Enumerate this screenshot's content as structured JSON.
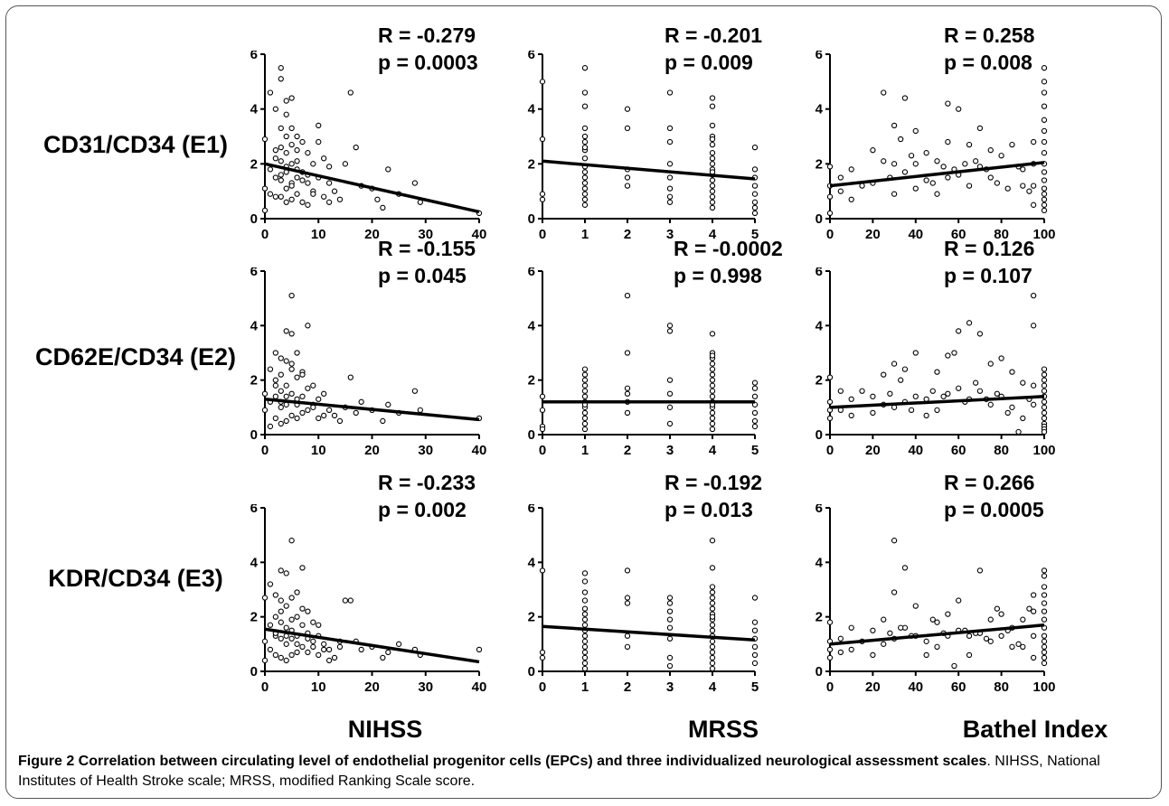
{
  "row_labels": [
    "CD31/CD34 (E1)",
    "CD62E/CD34 (E2)",
    "KDR/CD34 (E3)"
  ],
  "col_labels": [
    "NIHSS",
    "MRSS",
    "Bathel Index"
  ],
  "caption": {
    "title": "Figure 2 Correlation between circulating level of endothelial progenitor cells (EPCs) and three individualized neurological assessment scales",
    "text": ". NIHSS, National Institutes of Health Stroke scale; MRSS, modified Ranking Scale score."
  },
  "chart_data": [
    {
      "type": "scatter",
      "row": 0,
      "col": 0,
      "xlim": [
        0,
        40
      ],
      "ylim": [
        0,
        6
      ],
      "xticks": [
        0,
        10,
        20,
        30,
        40
      ],
      "yticks": [
        0,
        2,
        4,
        6
      ],
      "r_text": "R = -0.279",
      "p_text": "p = 0.0003",
      "fit": [
        [
          0,
          2.0
        ],
        [
          40,
          0.25
        ]
      ],
      "x": [
        0,
        0,
        0,
        1,
        1,
        1,
        2,
        2,
        2,
        2,
        3,
        3,
        3,
        3,
        3,
        3,
        4,
        4,
        4,
        4,
        4,
        4,
        5,
        5,
        5,
        5,
        5,
        6,
        6,
        6,
        6,
        7,
        7,
        7,
        8,
        8,
        8,
        9,
        9,
        10,
        10,
        11,
        11,
        12,
        12,
        13,
        14,
        15,
        16,
        17,
        18,
        20,
        21,
        22,
        23,
        25,
        28,
        29,
        40,
        3,
        4,
        5,
        6,
        7,
        2,
        3,
        4,
        5,
        6,
        8,
        9,
        10,
        12
      ],
      "y": [
        2.9,
        1.1,
        0.3,
        4.6,
        1.8,
        0.9,
        4.0,
        2.2,
        1.5,
        0.8,
        5.5,
        5.1,
        3.3,
        2.1,
        1.6,
        0.8,
        4.3,
        3.0,
        2.4,
        1.7,
        1.1,
        0.6,
        4.4,
        3.3,
        2.0,
        1.3,
        0.7,
        3.0,
        2.1,
        1.5,
        0.9,
        2.8,
        1.7,
        0.6,
        2.4,
        1.3,
        0.5,
        2.0,
        1.0,
        3.4,
        1.5,
        2.2,
        0.8,
        1.3,
        0.6,
        1.0,
        0.7,
        2.0,
        4.6,
        2.6,
        1.2,
        1.1,
        0.7,
        0.4,
        1.8,
        0.9,
        1.3,
        0.6,
        0.2,
        2.6,
        1.9,
        1.2,
        2.5,
        1.4,
        2.5,
        1.4,
        3.8,
        2.7,
        1.8,
        1.6,
        0.9,
        2.8,
        1.9
      ]
    },
    {
      "type": "scatter",
      "row": 0,
      "col": 1,
      "xlim": [
        0,
        5
      ],
      "ylim": [
        0,
        6
      ],
      "xticks": [
        0,
        1,
        2,
        3,
        4,
        5
      ],
      "yticks": [
        0,
        2,
        4,
        6
      ],
      "r_text": "R = -0.201",
      "p_text": "p = 0.009",
      "fit": [
        [
          0,
          2.1
        ],
        [
          5,
          1.45
        ]
      ],
      "x": [
        0,
        0,
        0,
        0,
        1,
        1,
        1,
        1,
        1,
        1,
        1,
        1,
        1,
        1,
        1,
        1,
        1,
        1,
        1,
        1,
        1,
        2,
        2,
        2,
        2,
        2,
        3,
        3,
        3,
        3,
        3,
        3,
        3,
        3,
        4,
        4,
        4,
        4,
        4,
        4,
        4,
        4,
        4,
        4,
        4,
        4,
        4,
        4,
        4,
        4,
        4,
        4,
        5,
        5,
        5,
        5,
        5,
        5,
        5,
        5
      ],
      "y": [
        5.0,
        2.9,
        0.9,
        0.7,
        5.5,
        4.6,
        4.1,
        3.3,
        3.0,
        2.8,
        2.5,
        2.2,
        1.9,
        1.7,
        1.5,
        1.3,
        1.1,
        0.9,
        0.7,
        0.5,
        2.6,
        4.0,
        3.3,
        1.8,
        1.5,
        1.2,
        4.6,
        3.3,
        2.8,
        2.0,
        1.5,
        1.1,
        0.8,
        0.6,
        4.4,
        4.1,
        3.4,
        3.0,
        2.7,
        2.4,
        2.2,
        2.0,
        1.8,
        1.6,
        1.4,
        1.2,
        1.0,
        0.8,
        0.6,
        0.4,
        2.9,
        1.7,
        2.6,
        1.8,
        1.5,
        1.2,
        0.9,
        0.6,
        0.4,
        0.2
      ]
    },
    {
      "type": "scatter",
      "row": 0,
      "col": 2,
      "xlim": [
        0,
        100
      ],
      "ylim": [
        0,
        6
      ],
      "xticks": [
        0,
        20,
        40,
        60,
        80,
        100
      ],
      "yticks": [
        0,
        2,
        4,
        6
      ],
      "r_text": "R = 0.258",
      "p_text": "p = 0.008",
      "fit": [
        [
          0,
          1.2
        ],
        [
          100,
          2.05
        ]
      ],
      "x": [
        0,
        0,
        0,
        0,
        5,
        5,
        10,
        10,
        15,
        20,
        20,
        25,
        25,
        30,
        30,
        30,
        35,
        35,
        40,
        40,
        40,
        45,
        45,
        50,
        50,
        55,
        55,
        55,
        60,
        60,
        65,
        65,
        70,
        70,
        75,
        75,
        80,
        85,
        90,
        90,
        95,
        95,
        95,
        95,
        100,
        100,
        100,
        100,
        100,
        100,
        100,
        100,
        100,
        100,
        100,
        100,
        100,
        100,
        100,
        100,
        28,
        33,
        38,
        48,
        53,
        58,
        63,
        68,
        73,
        78,
        83,
        88,
        93
      ],
      "y": [
        1.9,
        1.2,
        0.8,
        0.2,
        1.5,
        1.0,
        1.8,
        0.7,
        1.2,
        2.5,
        1.3,
        4.6,
        2.1,
        3.4,
        2.0,
        0.9,
        4.4,
        1.7,
        3.2,
        2.0,
        1.1,
        2.4,
        1.4,
        2.1,
        0.9,
        4.2,
        2.8,
        1.5,
        4.0,
        1.6,
        2.7,
        1.2,
        3.3,
        1.9,
        2.5,
        1.5,
        2.3,
        2.7,
        1.8,
        1.2,
        2.8,
        2.0,
        1.2,
        0.5,
        5.5,
        5.0,
        4.6,
        4.1,
        3.6,
        3.2,
        2.8,
        2.4,
        2.0,
        1.7,
        1.4,
        1.1,
        0.9,
        0.7,
        0.5,
        0.3,
        1.5,
        2.9,
        2.3,
        1.3,
        1.9,
        1.8,
        2.0,
        2.1,
        1.8,
        1.3,
        1.1,
        1.9,
        1.0
      ]
    },
    {
      "type": "scatter",
      "row": 1,
      "col": 0,
      "xlim": [
        0,
        40
      ],
      "ylim": [
        0,
        6
      ],
      "xticks": [
        0,
        10,
        20,
        30,
        40
      ],
      "yticks": [
        0,
        2,
        4,
        6
      ],
      "r_text": "R = -0.155",
      "p_text": "p = 0.045",
      "fit": [
        [
          0,
          1.3
        ],
        [
          40,
          0.55
        ]
      ],
      "x": [
        0,
        0,
        1,
        1,
        1,
        2,
        2,
        2,
        2,
        3,
        3,
        3,
        3,
        3,
        4,
        4,
        4,
        4,
        4,
        5,
        5,
        5,
        5,
        5,
        6,
        6,
        6,
        6,
        7,
        7,
        7,
        8,
        8,
        8,
        9,
        9,
        10,
        10,
        11,
        12,
        13,
        14,
        15,
        16,
        17,
        18,
        20,
        22,
        23,
        25,
        28,
        29,
        40,
        2,
        3,
        4,
        5,
        6,
        7,
        9,
        11
      ],
      "y": [
        1.5,
        0.9,
        2.4,
        1.2,
        0.3,
        3.0,
        2.0,
        1.4,
        0.6,
        2.8,
        2.2,
        1.6,
        1.0,
        0.4,
        3.8,
        2.7,
        1.8,
        1.1,
        0.5,
        5.1,
        3.7,
        2.4,
        1.5,
        0.7,
        3.0,
        2.1,
        1.3,
        0.6,
        2.3,
        1.4,
        0.8,
        4.0,
        1.7,
        0.9,
        1.8,
        1.1,
        1.3,
        0.6,
        1.5,
        0.9,
        0.7,
        0.5,
        1.0,
        2.1,
        0.8,
        1.2,
        0.9,
        0.5,
        1.1,
        0.8,
        1.6,
        0.9,
        0.6,
        1.8,
        1.2,
        1.4,
        2.6,
        1.1,
        2.2,
        1.0,
        0.7
      ]
    },
    {
      "type": "scatter",
      "row": 1,
      "col": 1,
      "xlim": [
        0,
        5
      ],
      "ylim": [
        0,
        6
      ],
      "xticks": [
        0,
        1,
        2,
        3,
        4,
        5
      ],
      "yticks": [
        0,
        2,
        4,
        6
      ],
      "r_text": "R = -0.0002",
      "p_text": "p = 0.998",
      "fit": [
        [
          0,
          1.2
        ],
        [
          5,
          1.2
        ]
      ],
      "x": [
        0,
        0,
        0,
        0,
        1,
        1,
        1,
        1,
        1,
        1,
        1,
        1,
        1,
        1,
        1,
        1,
        1,
        2,
        2,
        2,
        2,
        2,
        2,
        3,
        3,
        3,
        3,
        3,
        3,
        4,
        4,
        4,
        4,
        4,
        4,
        4,
        4,
        4,
        4,
        4,
        4,
        4,
        4,
        4,
        4,
        4,
        4,
        5,
        5,
        5,
        5,
        5,
        5,
        5
      ],
      "y": [
        1.4,
        0.9,
        0.3,
        0.2,
        2.4,
        2.2,
        2.0,
        1.8,
        1.6,
        1.4,
        1.2,
        1.0,
        0.8,
        0.6,
        0.4,
        0.2,
        1.1,
        5.1,
        3.0,
        1.7,
        1.5,
        1.2,
        0.8,
        4.0,
        3.8,
        2.0,
        1.5,
        1.0,
        0.4,
        3.7,
        3.0,
        2.8,
        2.6,
        2.4,
        2.2,
        2.0,
        1.8,
        1.6,
        1.4,
        1.2,
        1.0,
        0.8,
        0.6,
        0.4,
        0.2,
        2.9,
        1.1,
        1.9,
        1.7,
        1.4,
        1.1,
        0.8,
        0.5,
        0.3
      ]
    },
    {
      "type": "scatter",
      "row": 1,
      "col": 2,
      "xlim": [
        0,
        100
      ],
      "ylim": [
        0,
        6
      ],
      "xticks": [
        0,
        20,
        40,
        60,
        80,
        100
      ],
      "yticks": [
        0,
        2,
        4,
        6
      ],
      "r_text": "R = 0.126",
      "p_text": "p = 0.107",
      "fit": [
        [
          0,
          1.0
        ],
        [
          100,
          1.4
        ]
      ],
      "x": [
        0,
        0,
        0,
        0,
        5,
        5,
        10,
        10,
        15,
        20,
        20,
        25,
        25,
        30,
        30,
        35,
        35,
        40,
        40,
        45,
        45,
        50,
        50,
        55,
        55,
        60,
        60,
        65,
        65,
        70,
        70,
        75,
        75,
        80,
        80,
        85,
        85,
        90,
        90,
        95,
        95,
        95,
        95,
        100,
        100,
        100,
        100,
        100,
        100,
        100,
        100,
        100,
        100,
        100,
        100,
        100,
        100,
        28,
        33,
        38,
        48,
        53,
        58,
        63,
        68,
        73,
        78,
        83,
        88,
        93
      ],
      "y": [
        2.1,
        1.2,
        0.9,
        0.6,
        1.6,
        0.9,
        1.3,
        0.7,
        1.6,
        1.4,
        0.8,
        2.2,
        1.1,
        2.6,
        1.0,
        2.4,
        1.2,
        3.0,
        1.4,
        1.3,
        0.7,
        2.3,
        0.9,
        2.9,
        1.5,
        3.8,
        1.7,
        4.1,
        1.3,
        3.7,
        1.6,
        2.6,
        1.1,
        2.8,
        1.4,
        2.3,
        1.0,
        1.9,
        0.6,
        5.1,
        4.0,
        1.8,
        1.1,
        2.4,
        2.2,
        2.0,
        1.8,
        1.6,
        1.4,
        1.2,
        1.0,
        0.8,
        0.6,
        0.4,
        0.3,
        0.2,
        0.1,
        1.5,
        2.0,
        0.9,
        1.6,
        1.4,
        3.0,
        1.2,
        1.9,
        1.3,
        1.5,
        0.8,
        0.1,
        1.3
      ]
    },
    {
      "type": "scatter",
      "row": 2,
      "col": 0,
      "xlim": [
        0,
        40
      ],
      "ylim": [
        0,
        6
      ],
      "xticks": [
        0,
        10,
        20,
        30,
        40
      ],
      "yticks": [
        0,
        2,
        4,
        6
      ],
      "r_text": "R = -0.233",
      "p_text": "p = 0.002",
      "fit": [
        [
          0,
          1.55
        ],
        [
          40,
          0.35
        ]
      ],
      "x": [
        0,
        0,
        0,
        1,
        1,
        1,
        2,
        2,
        2,
        2,
        3,
        3,
        3,
        3,
        3,
        4,
        4,
        4,
        4,
        4,
        5,
        5,
        5,
        5,
        5,
        6,
        6,
        6,
        6,
        7,
        7,
        7,
        8,
        8,
        8,
        9,
        9,
        10,
        10,
        11,
        12,
        13,
        14,
        15,
        16,
        17,
        18,
        20,
        22,
        23,
        25,
        28,
        29,
        40,
        2,
        3,
        4,
        5,
        6,
        7,
        8,
        9,
        10,
        11,
        12,
        14
      ],
      "y": [
        2.7,
        1.1,
        0.4,
        3.2,
        1.7,
        0.8,
        2.8,
        2.0,
        1.3,
        0.6,
        3.7,
        2.6,
        1.8,
        1.2,
        0.5,
        3.6,
        2.4,
        1.6,
        1.0,
        0.4,
        4.8,
        2.7,
        1.9,
        1.2,
        0.6,
        2.9,
        2.0,
        1.3,
        0.7,
        3.8,
        1.7,
        0.9,
        2.2,
        1.4,
        0.7,
        1.8,
        1.1,
        1.3,
        0.6,
        1.0,
        0.8,
        0.5,
        0.9,
        2.6,
        2.6,
        1.1,
        0.8,
        0.9,
        0.5,
        0.7,
        1.0,
        0.8,
        0.6,
        0.8,
        1.4,
        2.2,
        1.3,
        1.5,
        1.0,
        2.3,
        1.2,
        0.9,
        1.7,
        0.8,
        0.4,
        1.1
      ]
    },
    {
      "type": "scatter",
      "row": 2,
      "col": 1,
      "xlim": [
        0,
        5
      ],
      "ylim": [
        0,
        6
      ],
      "xticks": [
        0,
        1,
        2,
        3,
        4,
        5
      ],
      "yticks": [
        0,
        2,
        4,
        6
      ],
      "r_text": "R = -0.192",
      "p_text": "p = 0.013",
      "fit": [
        [
          0,
          1.65
        ],
        [
          5,
          1.15
        ]
      ],
      "x": [
        0,
        0,
        0,
        1,
        1,
        1,
        1,
        1,
        1,
        1,
        1,
        1,
        1,
        1,
        1,
        1,
        1,
        1,
        1,
        2,
        2,
        2,
        2,
        2,
        3,
        3,
        3,
        3,
        3,
        3,
        3,
        3,
        4,
        4,
        4,
        4,
        4,
        4,
        4,
        4,
        4,
        4,
        4,
        4,
        4,
        4,
        4,
        4,
        4,
        4,
        4,
        5,
        5,
        5,
        5,
        5,
        5,
        5
      ],
      "y": [
        3.7,
        0.7,
        0.5,
        3.6,
        3.3,
        2.9,
        2.6,
        2.3,
        2.1,
        1.9,
        1.7,
        1.5,
        1.3,
        1.1,
        0.9,
        0.7,
        0.5,
        0.3,
        0.1,
        3.7,
        2.7,
        2.5,
        1.3,
        0.9,
        2.7,
        2.5,
        2.2,
        1.9,
        1.6,
        1.2,
        0.5,
        0.2,
        4.8,
        3.8,
        3.1,
        2.9,
        2.7,
        2.5,
        2.3,
        2.1,
        1.9,
        1.7,
        1.5,
        1.3,
        1.1,
        0.9,
        0.7,
        0.5,
        0.3,
        0.1,
        2.0,
        2.7,
        1.8,
        1.5,
        1.2,
        0.9,
        0.6,
        0.3
      ]
    },
    {
      "type": "scatter",
      "row": 2,
      "col": 2,
      "xlim": [
        0,
        100
      ],
      "ylim": [
        0,
        6
      ],
      "xticks": [
        0,
        20,
        40,
        60,
        80,
        100
      ],
      "yticks": [
        0,
        2,
        4,
        6
      ],
      "r_text": "R = 0.266",
      "p_text": "p = 0.0005",
      "fit": [
        [
          0,
          1.0
        ],
        [
          100,
          1.7
        ]
      ],
      "x": [
        0,
        0,
        0,
        0,
        5,
        5,
        10,
        10,
        15,
        20,
        20,
        25,
        25,
        30,
        30,
        30,
        35,
        35,
        40,
        40,
        45,
        45,
        50,
        50,
        55,
        55,
        60,
        60,
        65,
        65,
        70,
        70,
        75,
        75,
        80,
        80,
        85,
        85,
        90,
        90,
        95,
        95,
        95,
        95,
        100,
        100,
        100,
        100,
        100,
        100,
        100,
        100,
        100,
        100,
        100,
        100,
        100,
        100,
        28,
        33,
        38,
        48,
        53,
        58,
        63,
        68,
        73,
        78,
        83,
        88,
        93
      ],
      "y": [
        1.8,
        1.1,
        0.8,
        0.5,
        1.2,
        0.7,
        1.6,
        0.8,
        1.1,
        1.5,
        0.6,
        1.9,
        1.0,
        4.8,
        2.9,
        1.2,
        3.8,
        1.6,
        2.4,
        1.3,
        1.1,
        0.6,
        1.8,
        0.9,
        2.1,
        1.3,
        2.6,
        1.5,
        1.3,
        0.6,
        3.7,
        1.4,
        1.9,
        1.1,
        2.1,
        1.3,
        1.6,
        0.9,
        1.9,
        0.9,
        2.8,
        2.2,
        1.3,
        0.5,
        3.7,
        3.5,
        3.1,
        2.8,
        2.5,
        2.2,
        1.9,
        1.6,
        1.3,
        1.1,
        0.9,
        0.7,
        0.5,
        0.3,
        1.4,
        1.6,
        1.3,
        1.9,
        1.4,
        0.2,
        1.5,
        1.4,
        1.2,
        2.3,
        1.5,
        1.0,
        2.3
      ]
    }
  ]
}
